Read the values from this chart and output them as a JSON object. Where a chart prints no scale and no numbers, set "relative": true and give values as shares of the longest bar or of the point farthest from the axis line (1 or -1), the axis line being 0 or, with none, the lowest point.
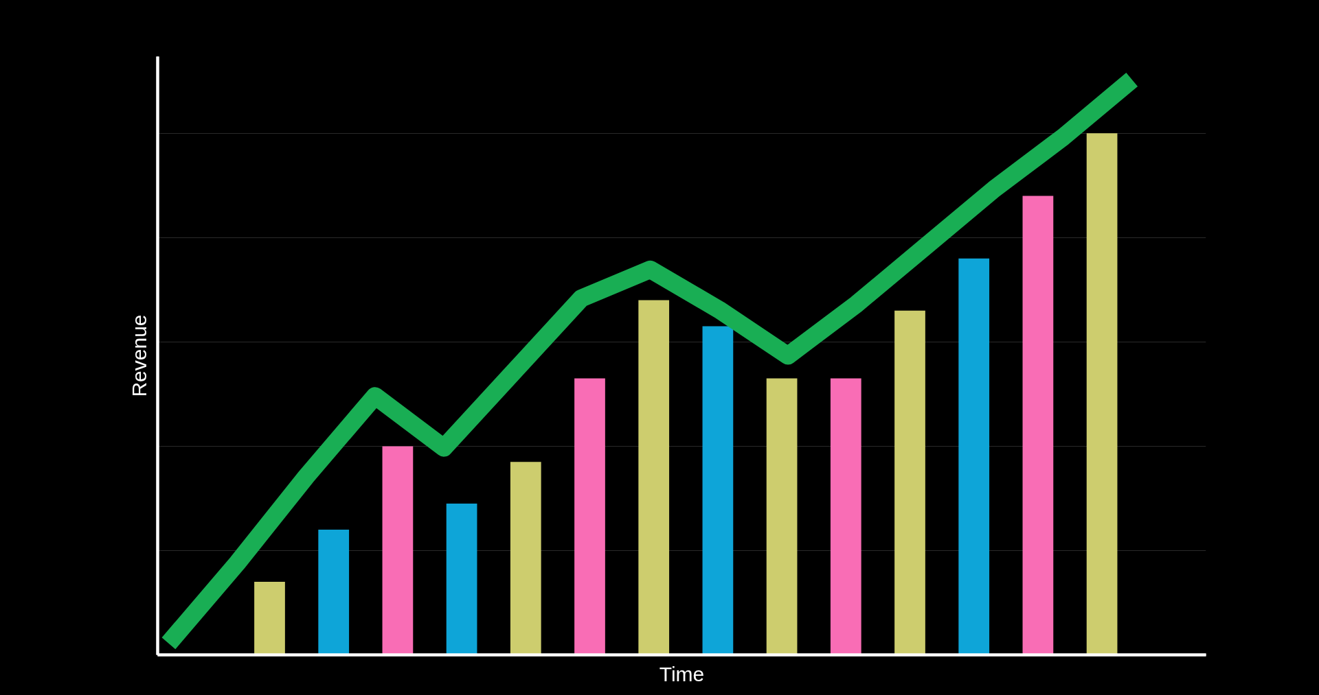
{
  "chart_data": [
    {
      "type": "bar",
      "relative": true,
      "xlabel": "Time",
      "ylabel": "Revenue",
      "grid": "y",
      "categories": [
        null,
        null,
        null,
        null,
        null,
        null,
        null,
        null,
        null,
        null,
        null,
        null,
        null,
        null
      ],
      "values": [
        0.14,
        0.24,
        0.4,
        0.29,
        0.37,
        0.53,
        0.68,
        0.63,
        0.53,
        0.53,
        0.66,
        0.76,
        0.88,
        1.0
      ],
      "colors": [
        "#cdcd6e",
        "#0ea5d8",
        "#f96db5",
        "#0ea5d8",
        "#cdcd6e",
        "#f96db5",
        "#cdcd6e",
        "#0ea5d8",
        "#cdcd6e",
        "#f96db5",
        "#cdcd6e",
        "#0ea5d8",
        "#f96db5",
        "#cdcd6e"
      ]
    },
    {
      "type": "line",
      "relative": true,
      "color": "#19ae54",
      "marker": "none",
      "line_style": "solid",
      "categories": [
        null,
        null,
        null,
        null,
        null,
        null,
        null,
        null,
        null,
        null,
        null,
        null,
        null,
        null,
        null
      ],
      "values": [
        0.02,
        0.16,
        0.31,
        0.45,
        0.36,
        0.49,
        0.62,
        0.67,
        0.6,
        0.52,
        0.61,
        0.71,
        0.81,
        0.9,
        1.0
      ]
    }
  ]
}
